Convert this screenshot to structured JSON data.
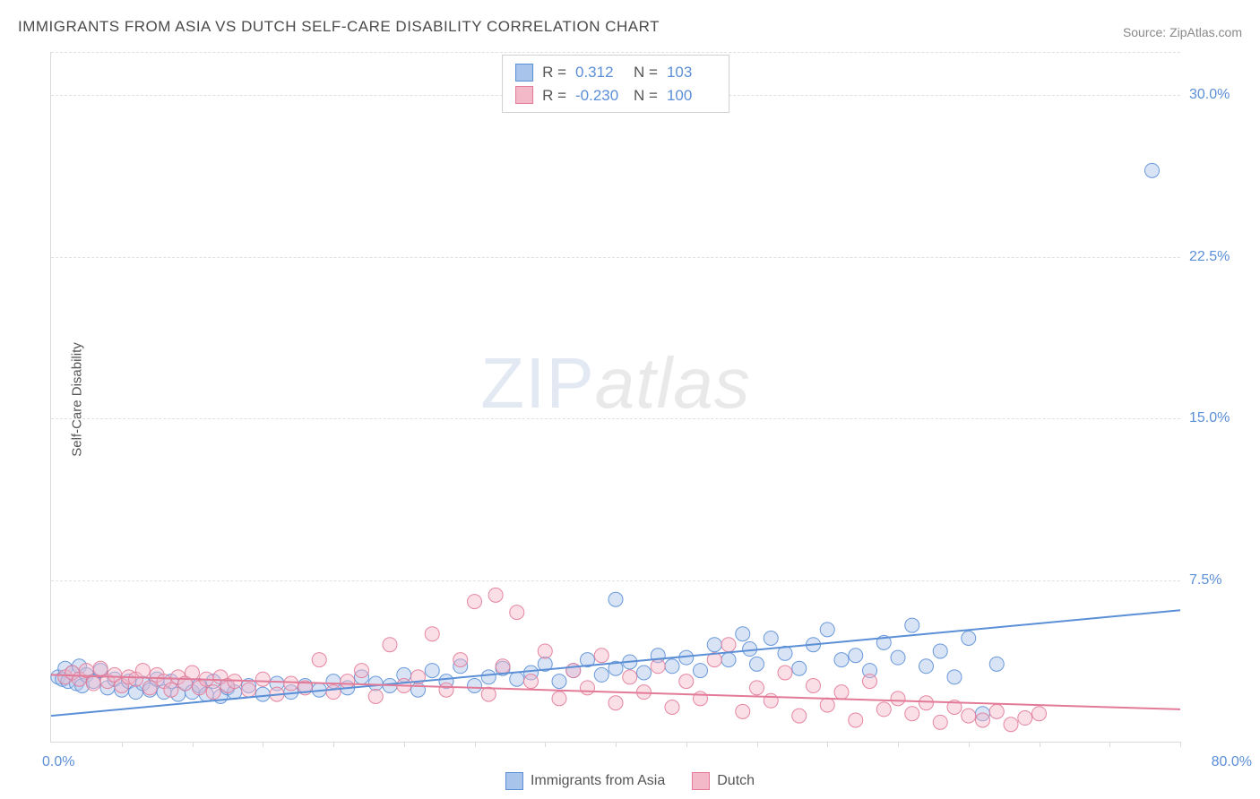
{
  "title": "IMMIGRANTS FROM ASIA VS DUTCH SELF-CARE DISABILITY CORRELATION CHART",
  "source": "Source: ZipAtlas.com",
  "ylabel": "Self-Care Disability",
  "watermark_zip": "ZIP",
  "watermark_atlas": "atlas",
  "chart": {
    "type": "scatter",
    "xlim": [
      0,
      80
    ],
    "ylim": [
      0,
      32
    ],
    "x_ticks_minor_count": 16,
    "y_ticks": [
      {
        "v": 7.5,
        "label": "7.5%"
      },
      {
        "v": 15.0,
        "label": "15.0%"
      },
      {
        "v": 22.5,
        "label": "22.5%"
      },
      {
        "v": 30.0,
        "label": "30.0%"
      }
    ],
    "x_tick_left": "0.0%",
    "x_tick_right": "80.0%",
    "grid_color": "#e0e0e0",
    "axis_color": "#d9d9d9",
    "background_color": "#ffffff",
    "tick_label_color": "#5b8fd6",
    "marker_radius": 8,
    "marker_opacity": 0.45,
    "marker_stroke_opacity": 0.9,
    "line_width": 2,
    "series": [
      {
        "name": "Immigrants from Asia",
        "color": "#5b8fd6",
        "fill": "#a8c4ea",
        "R": "0.312",
        "N": "103",
        "trend": {
          "x1": 0,
          "y1": 1.2,
          "x2": 80,
          "y2": 6.1
        },
        "points": [
          [
            0.5,
            3.0
          ],
          [
            0.8,
            2.9
          ],
          [
            1.0,
            3.4
          ],
          [
            1.2,
            2.8
          ],
          [
            1.5,
            3.2
          ],
          [
            1.8,
            2.7
          ],
          [
            2.0,
            3.5
          ],
          [
            2.2,
            2.6
          ],
          [
            2.5,
            3.1
          ],
          [
            3.0,
            2.8
          ],
          [
            3.5,
            3.3
          ],
          [
            4.0,
            2.5
          ],
          [
            4.5,
            2.9
          ],
          [
            5.0,
            2.4
          ],
          [
            5.5,
            2.8
          ],
          [
            6.0,
            2.3
          ],
          [
            6.5,
            2.7
          ],
          [
            7.0,
            2.4
          ],
          [
            7.5,
            2.9
          ],
          [
            8.0,
            2.3
          ],
          [
            8.5,
            2.8
          ],
          [
            9.0,
            2.2
          ],
          [
            9.5,
            2.7
          ],
          [
            10,
            2.3
          ],
          [
            10.5,
            2.6
          ],
          [
            11,
            2.2
          ],
          [
            11.5,
            2.8
          ],
          [
            12,
            2.1
          ],
          [
            12.5,
            2.5
          ],
          [
            13,
            2.3
          ],
          [
            14,
            2.6
          ],
          [
            15,
            2.2
          ],
          [
            16,
            2.7
          ],
          [
            17,
            2.3
          ],
          [
            18,
            2.6
          ],
          [
            19,
            2.4
          ],
          [
            20,
            2.8
          ],
          [
            21,
            2.5
          ],
          [
            22,
            3.0
          ],
          [
            23,
            2.7
          ],
          [
            24,
            2.6
          ],
          [
            25,
            3.1
          ],
          [
            26,
            2.4
          ],
          [
            27,
            3.3
          ],
          [
            28,
            2.8
          ],
          [
            29,
            3.5
          ],
          [
            30,
            2.6
          ],
          [
            31,
            3.0
          ],
          [
            32,
            3.4
          ],
          [
            33,
            2.9
          ],
          [
            34,
            3.2
          ],
          [
            35,
            3.6
          ],
          [
            36,
            2.8
          ],
          [
            37,
            3.3
          ],
          [
            38,
            3.8
          ],
          [
            39,
            3.1
          ],
          [
            40,
            6.6
          ],
          [
            40,
            3.4
          ],
          [
            41,
            3.7
          ],
          [
            42,
            3.2
          ],
          [
            43,
            4.0
          ],
          [
            44,
            3.5
          ],
          [
            45,
            3.9
          ],
          [
            46,
            3.3
          ],
          [
            47,
            4.5
          ],
          [
            48,
            3.8
          ],
          [
            49,
            5.0
          ],
          [
            49.5,
            4.3
          ],
          [
            50,
            3.6
          ],
          [
            51,
            4.8
          ],
          [
            52,
            4.1
          ],
          [
            53,
            3.4
          ],
          [
            54,
            4.5
          ],
          [
            55,
            5.2
          ],
          [
            56,
            3.8
          ],
          [
            57,
            4.0
          ],
          [
            58,
            3.3
          ],
          [
            59,
            4.6
          ],
          [
            60,
            3.9
          ],
          [
            61,
            5.4
          ],
          [
            62,
            3.5
          ],
          [
            63,
            4.2
          ],
          [
            64,
            3.0
          ],
          [
            65,
            4.8
          ],
          [
            66,
            1.3
          ],
          [
            67,
            3.6
          ],
          [
            78,
            26.5
          ]
        ]
      },
      {
        "name": "Dutch",
        "color": "#e27a98",
        "fill": "#f4b9c9",
        "R": "-0.230",
        "N": "100",
        "trend": {
          "x1": 0,
          "y1": 3.1,
          "x2": 80,
          "y2": 1.5
        },
        "points": [
          [
            1.0,
            3.0
          ],
          [
            1.5,
            3.2
          ],
          [
            2.0,
            2.9
          ],
          [
            2.5,
            3.3
          ],
          [
            3.0,
            2.7
          ],
          [
            3.5,
            3.4
          ],
          [
            4.0,
            2.8
          ],
          [
            4.5,
            3.1
          ],
          [
            5.0,
            2.6
          ],
          [
            5.5,
            3.0
          ],
          [
            6.0,
            2.9
          ],
          [
            6.5,
            3.3
          ],
          [
            7.0,
            2.5
          ],
          [
            7.5,
            3.1
          ],
          [
            8.0,
            2.8
          ],
          [
            8.5,
            2.4
          ],
          [
            9.0,
            3.0
          ],
          [
            9.5,
            2.7
          ],
          [
            10,
            3.2
          ],
          [
            10.5,
            2.5
          ],
          [
            11,
            2.9
          ],
          [
            11.5,
            2.3
          ],
          [
            12,
            3.0
          ],
          [
            12.5,
            2.6
          ],
          [
            13,
            2.8
          ],
          [
            14,
            2.4
          ],
          [
            15,
            2.9
          ],
          [
            16,
            2.2
          ],
          [
            17,
            2.7
          ],
          [
            18,
            2.5
          ],
          [
            19,
            3.8
          ],
          [
            20,
            2.3
          ],
          [
            21,
            2.8
          ],
          [
            22,
            3.3
          ],
          [
            23,
            2.1
          ],
          [
            24,
            4.5
          ],
          [
            25,
            2.6
          ],
          [
            26,
            3.0
          ],
          [
            27,
            5.0
          ],
          [
            28,
            2.4
          ],
          [
            29,
            3.8
          ],
          [
            30,
            6.5
          ],
          [
            31,
            2.2
          ],
          [
            31.5,
            6.8
          ],
          [
            32,
            3.5
          ],
          [
            33,
            6.0
          ],
          [
            34,
            2.8
          ],
          [
            35,
            4.2
          ],
          [
            36,
            2.0
          ],
          [
            37,
            3.3
          ],
          [
            38,
            2.5
          ],
          [
            39,
            4.0
          ],
          [
            40,
            1.8
          ],
          [
            41,
            3.0
          ],
          [
            42,
            2.3
          ],
          [
            43,
            3.5
          ],
          [
            44,
            1.6
          ],
          [
            45,
            2.8
          ],
          [
            46,
            2.0
          ],
          [
            47,
            3.8
          ],
          [
            48,
            4.5
          ],
          [
            49,
            1.4
          ],
          [
            50,
            2.5
          ],
          [
            51,
            1.9
          ],
          [
            52,
            3.2
          ],
          [
            53,
            1.2
          ],
          [
            54,
            2.6
          ],
          [
            55,
            1.7
          ],
          [
            56,
            2.3
          ],
          [
            57,
            1.0
          ],
          [
            58,
            2.8
          ],
          [
            59,
            1.5
          ],
          [
            60,
            2.0
          ],
          [
            61,
            1.3
          ],
          [
            62,
            1.8
          ],
          [
            63,
            0.9
          ],
          [
            64,
            1.6
          ],
          [
            65,
            1.2
          ],
          [
            66,
            1.0
          ],
          [
            67,
            1.4
          ],
          [
            68,
            0.8
          ],
          [
            69,
            1.1
          ],
          [
            70,
            1.3
          ]
        ]
      }
    ]
  },
  "stats_box": {
    "R_label": "R =",
    "N_label": "N ="
  }
}
